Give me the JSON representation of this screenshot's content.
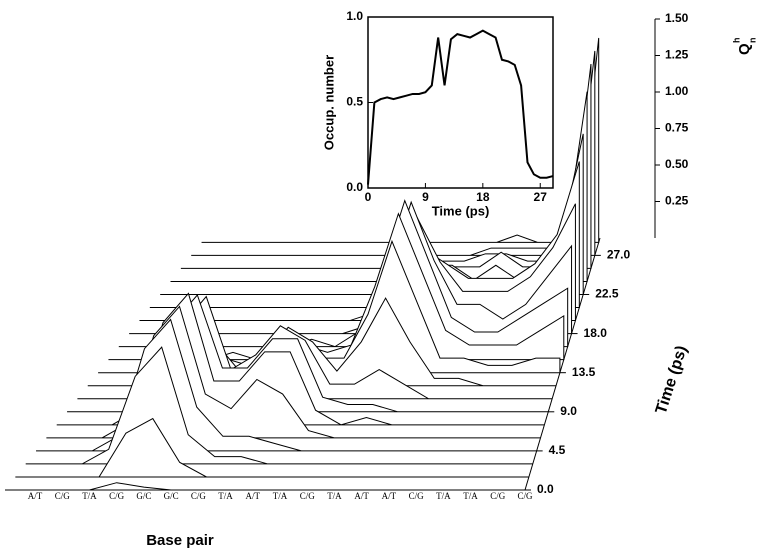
{
  "chart_data": [
    {
      "type": "waterfall",
      "xlabel": "Base pair",
      "ylabel": "Time (ps)",
      "zlabel": "Q",
      "zlabel_sup": "h",
      "zlabel_sub": "n",
      "categories": [
        "A/T",
        "C/G",
        "T/A",
        "C/G",
        "G/C",
        "G/C",
        "C/G",
        "T/A",
        "A/T",
        "T/A",
        "C/G",
        "T/A",
        "A/T",
        "A/T",
        "C/G",
        "T/A",
        "T/A",
        "C/G",
        "C/G"
      ],
      "times": [
        0,
        1.5,
        3,
        4.5,
        6,
        7.5,
        9,
        10.5,
        12,
        13.5,
        15,
        16.5,
        18,
        19.5,
        21,
        22.5,
        24,
        25.5,
        27,
        28.5
      ],
      "values": [
        [
          0,
          0,
          0,
          0.05,
          0.02,
          0,
          0,
          0,
          0,
          0,
          0,
          0,
          0,
          0,
          0,
          0,
          0,
          0,
          0
        ],
        [
          0,
          0,
          0,
          0.3,
          0.4,
          0.1,
          0,
          0,
          0,
          0,
          0,
          0,
          0,
          0,
          0,
          0,
          0,
          0,
          0
        ],
        [
          0,
          0,
          0.1,
          0.6,
          0.8,
          0.2,
          0.05,
          0.05,
          0,
          0,
          0,
          0,
          0,
          0,
          0,
          0,
          0,
          0,
          0
        ],
        [
          0,
          0,
          0.1,
          0.7,
          0.9,
          0.3,
          0.1,
          0.1,
          0.05,
          0,
          0,
          0,
          0,
          0,
          0,
          0,
          0,
          0,
          0
        ],
        [
          0,
          0,
          0.1,
          0.7,
          0.9,
          0.3,
          0.2,
          0.4,
          0.3,
          0.05,
          0,
          0,
          0,
          0,
          0,
          0,
          0,
          0,
          0
        ],
        [
          0,
          0,
          0.1,
          0.7,
          0.9,
          0.3,
          0.3,
          0.5,
          0.5,
          0.1,
          0,
          0.05,
          0,
          0,
          0,
          0,
          0,
          0,
          0
        ],
        [
          0,
          0,
          0.1,
          0.6,
          0.8,
          0.3,
          0.3,
          0.5,
          0.5,
          0.1,
          0.05,
          0.05,
          0,
          0,
          0,
          0,
          0,
          0,
          0
        ],
        [
          0,
          0,
          0.05,
          0.5,
          0.7,
          0.2,
          0.3,
          0.5,
          0.4,
          0.1,
          0.1,
          0.2,
          0.1,
          0,
          0,
          0,
          0,
          0,
          0
        ],
        [
          0,
          0,
          0,
          0.2,
          0.3,
          0.1,
          0.2,
          0.4,
          0.3,
          0.1,
          0.3,
          0.6,
          0.3,
          0.05,
          0.05,
          0,
          0,
          0,
          0
        ],
        [
          0,
          0,
          0,
          0.05,
          0.1,
          0.05,
          0.1,
          0.2,
          0.1,
          0.1,
          0.4,
          0.9,
          0.5,
          0.1,
          0.1,
          0.05,
          0.05,
          0.1,
          0.1
        ],
        [
          0,
          0,
          0,
          0,
          0.05,
          0,
          0.05,
          0.1,
          0.05,
          0.1,
          0.5,
          1.0,
          0.6,
          0.2,
          0.1,
          0.1,
          0.1,
          0.2,
          0.3
        ],
        [
          0,
          0,
          0,
          0,
          0,
          0,
          0,
          0.05,
          0,
          0.1,
          0.5,
          1.0,
          0.6,
          0.2,
          0.1,
          0.1,
          0.2,
          0.3,
          0.4
        ],
        [
          0,
          0,
          0,
          0,
          0,
          0,
          0,
          0,
          0,
          0.05,
          0.4,
          0.9,
          0.5,
          0.2,
          0.2,
          0.1,
          0.2,
          0.4,
          0.6
        ],
        [
          0,
          0,
          0,
          0,
          0,
          0,
          0,
          0,
          0,
          0.05,
          0.3,
          0.7,
          0.4,
          0.2,
          0.2,
          0.2,
          0.3,
          0.5,
          0.8
        ],
        [
          0,
          0,
          0,
          0,
          0,
          0,
          0,
          0,
          0,
          0,
          0.2,
          0.4,
          0.3,
          0.2,
          0.2,
          0.2,
          0.3,
          0.5,
          1.0
        ],
        [
          0,
          0,
          0,
          0,
          0,
          0,
          0,
          0,
          0,
          0,
          0.1,
          0.2,
          0.2,
          0.1,
          0.2,
          0.1,
          0.2,
          0.4,
          1.1
        ],
        [
          0,
          0,
          0,
          0,
          0,
          0,
          0,
          0,
          0,
          0,
          0.05,
          0.1,
          0.1,
          0.1,
          0.2,
          0.1,
          0.1,
          0.3,
          1.3
        ],
        [
          0,
          0,
          0,
          0,
          0,
          0,
          0,
          0,
          0,
          0,
          0,
          0.05,
          0.05,
          0.1,
          0.1,
          0.05,
          0.05,
          0.2,
          1.4
        ],
        [
          0,
          0,
          0,
          0,
          0,
          0,
          0,
          0,
          0,
          0,
          0,
          0,
          0,
          0.05,
          0.05,
          0.05,
          0.05,
          0.15,
          1.4
        ],
        [
          0,
          0,
          0,
          0,
          0,
          0,
          0,
          0,
          0,
          0,
          0,
          0,
          0,
          0,
          0.05,
          0,
          0,
          0.1,
          1.4
        ]
      ],
      "ylim": [
        0,
        29
      ],
      "yticks": [
        {
          "value": 0,
          "label": "0.0"
        },
        4.5,
        {
          "value": 9,
          "label": "9.0"
        },
        13.5,
        {
          "value": 18,
          "label": "18.0"
        },
        22.5,
        {
          "value": 27,
          "label": "27.0"
        }
      ],
      "zlim": [
        0,
        1.5
      ],
      "zticks": [
        0.25,
        {
          "value": 0.5,
          "label": "0.50"
        },
        0.75,
        {
          "value": 1,
          "label": "1.00"
        },
        1.25,
        {
          "value": 1.5,
          "label": "1.50"
        }
      ],
      "color": "#000000"
    },
    {
      "type": "line",
      "xlabel": "Time (ps)",
      "ylabel": "Occup. number",
      "x": [
        0,
        1,
        2,
        3,
        4,
        5,
        6,
        7,
        8,
        9,
        10,
        11,
        12,
        13,
        14,
        15,
        16,
        17,
        18,
        19,
        20,
        21,
        22,
        23,
        24,
        25,
        26,
        27,
        28,
        29
      ],
      "values": [
        0.02,
        0.5,
        0.52,
        0.53,
        0.52,
        0.53,
        0.54,
        0.55,
        0.55,
        0.56,
        0.6,
        0.88,
        0.6,
        0.87,
        0.9,
        0.89,
        0.88,
        0.9,
        0.92,
        0.9,
        0.88,
        0.75,
        0.74,
        0.72,
        0.6,
        0.15,
        0.08,
        0.06,
        0.06,
        0.07
      ],
      "xlim": [
        0,
        29
      ],
      "ylim": [
        0,
        1
      ],
      "xticks": [
        0,
        9,
        18,
        27
      ],
      "yticks": [
        {
          "value": 0,
          "label": "0.0"
        },
        0.5,
        {
          "value": 1,
          "label": "1.0"
        }
      ],
      "color": "#000000"
    }
  ]
}
